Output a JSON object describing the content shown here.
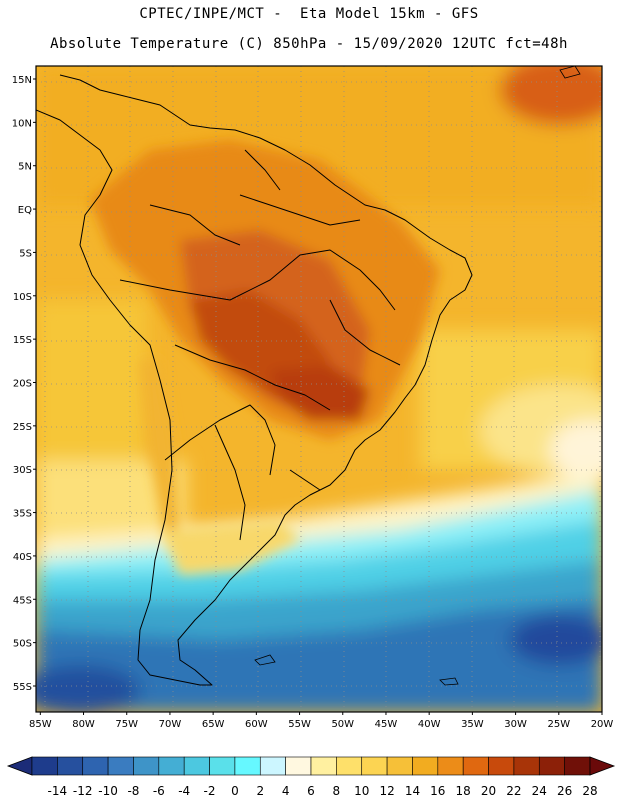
{
  "header": {
    "line1": "CPTEC/INPE/MCT -  Eta Model 15km - GFS",
    "line2": "Absolute Temperature (C) 850hPa - 15/09/2020 12UTC fct=48h"
  },
  "map": {
    "lat_ticks": [
      "15N",
      "10N",
      "5N",
      "EQ",
      "5S",
      "10S",
      "15S",
      "20S",
      "25S",
      "30S",
      "35S",
      "40S",
      "45S",
      "50S",
      "55S"
    ],
    "lon_ticks": [
      "85W",
      "80W",
      "75W",
      "70W",
      "65W",
      "60W",
      "55W",
      "50W",
      "45W",
      "40W",
      "35W",
      "30W",
      "25W",
      "20W"
    ],
    "lat_values": [
      15,
      10,
      5,
      0,
      -5,
      -10,
      -15,
      -20,
      -25,
      -30,
      -35,
      -40,
      -45,
      -50,
      -55
    ],
    "lon_values": [
      -85,
      -80,
      -75,
      -70,
      -65,
      -60,
      -55,
      -50,
      -45,
      -40,
      -35,
      -30,
      -25,
      -20
    ],
    "extent": {
      "lon_min": -85.5,
      "lon_max": -20,
      "lat_min": -58,
      "lat_max": 16.5
    }
  },
  "colorbar": {
    "labels": [
      "-14",
      "-12",
      "-10",
      "-8",
      "-6",
      "-4",
      "-2",
      "0",
      "2",
      "4",
      "6",
      "8",
      "10",
      "12",
      "14",
      "16",
      "18",
      "20",
      "22",
      "24",
      "26",
      "28"
    ],
    "colors": [
      "#1e3c8c",
      "#26509e",
      "#2e64b0",
      "#3a7cc0",
      "#3e94c8",
      "#44aed4",
      "#4cc8e0",
      "#5ae0ea",
      "#66f8ff",
      "#ccf6ff",
      "#fff8e0",
      "#fff0a0",
      "#fee06a",
      "#fcd452",
      "#f6c038",
      "#f2ac20",
      "#ec8c18",
      "#e06810",
      "#c84a0c",
      "#a83408",
      "#8c2008",
      "#701008"
    ],
    "under_color": "#1c2c78",
    "over_color": "#6a0a0a"
  }
}
